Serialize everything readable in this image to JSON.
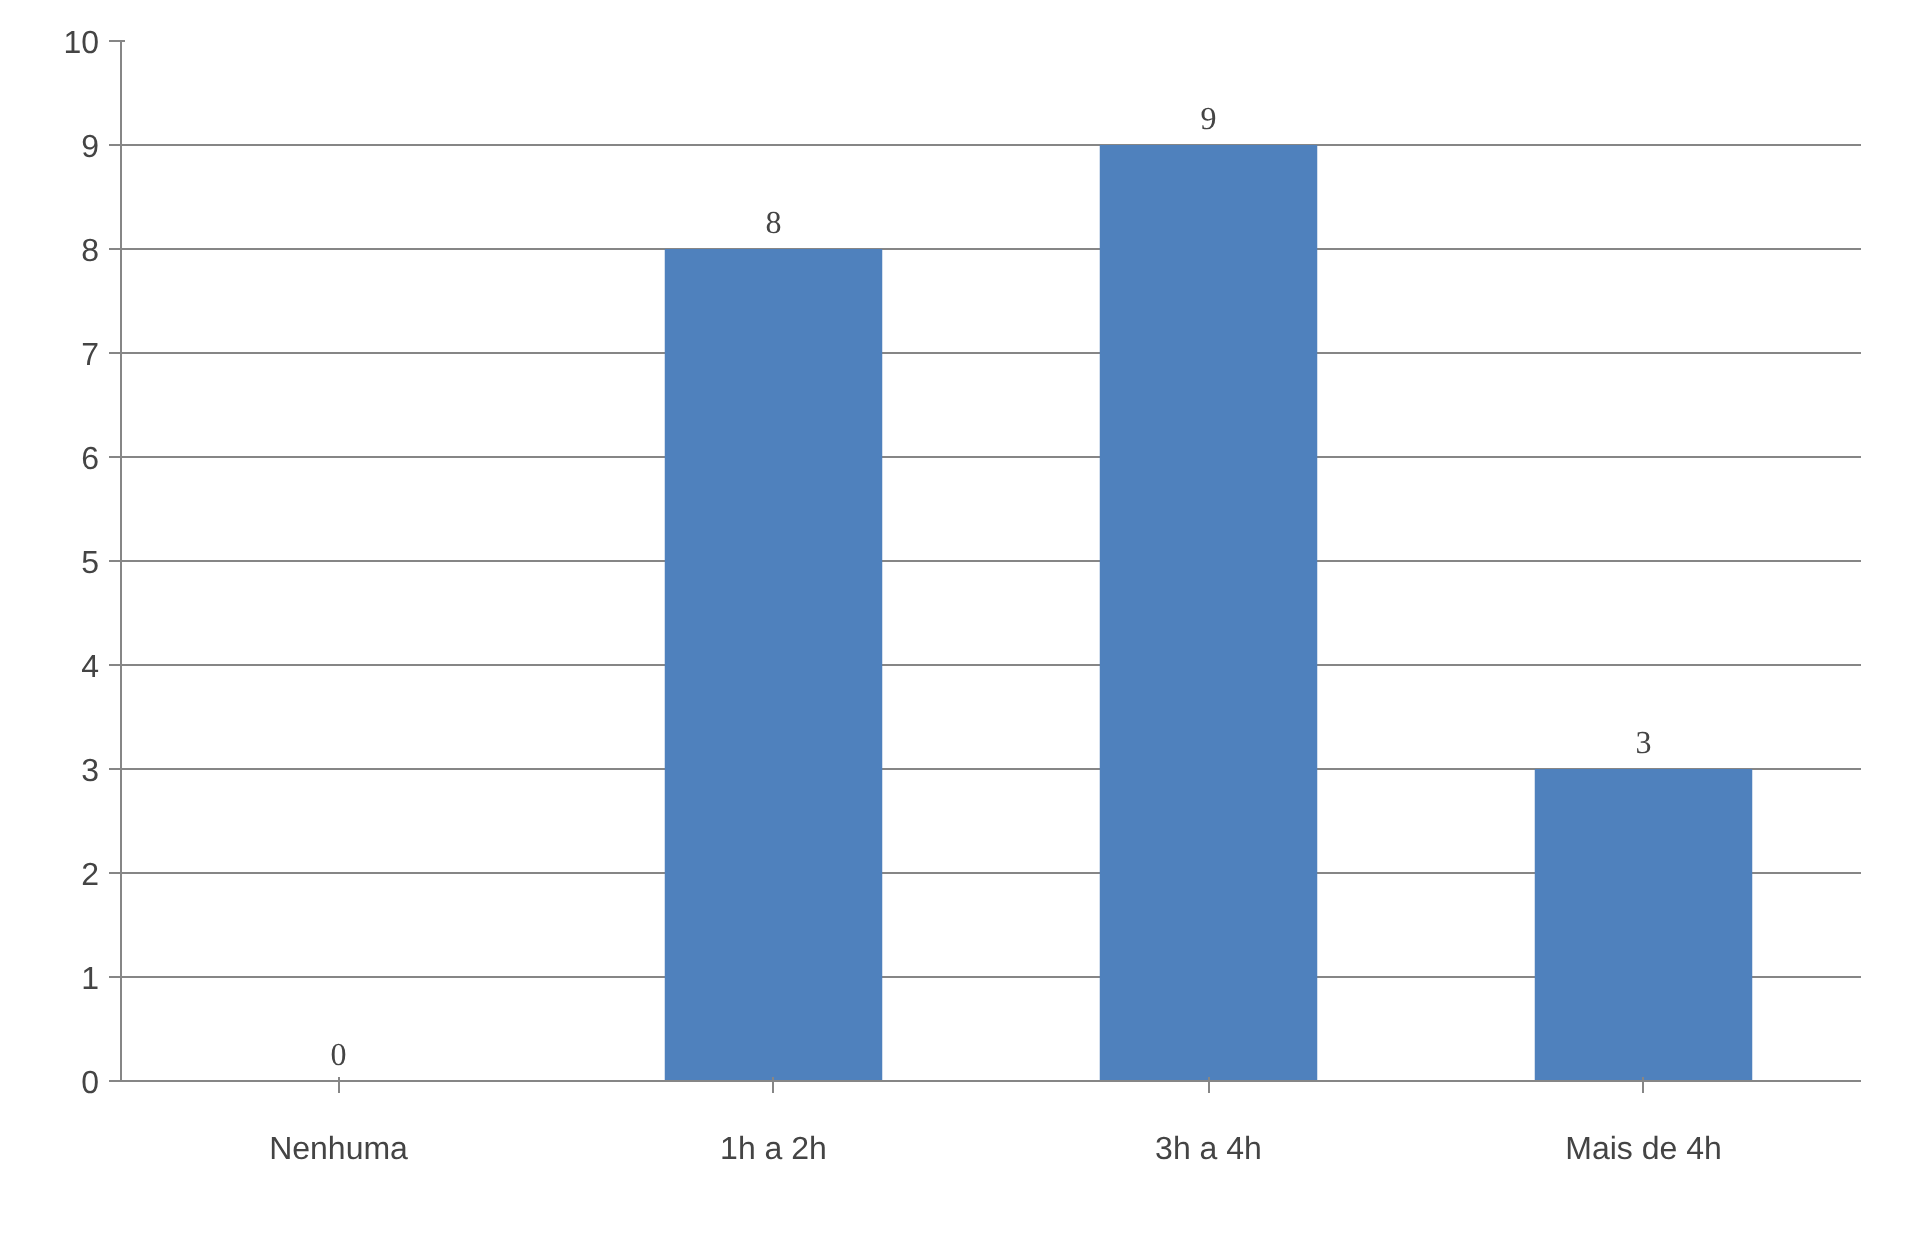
{
  "chart_data": {
    "type": "bar",
    "categories": [
      "Nenhuma",
      "1h a 2h",
      "3h a 4h",
      "Mais de 4h"
    ],
    "values": [
      0,
      8,
      9,
      3
    ],
    "color": "#4f81bd",
    "ylim": [
      0,
      10
    ],
    "yticks": [
      0,
      1,
      2,
      3,
      4,
      5,
      6,
      7,
      8,
      9,
      10
    ],
    "grid": "y",
    "data_labels": true
  }
}
